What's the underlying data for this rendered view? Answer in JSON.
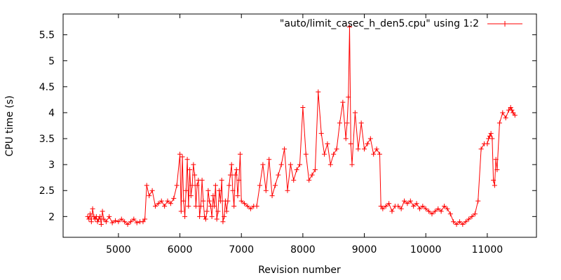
{
  "chart_data": {
    "type": "line",
    "title": "",
    "xlabel": "Revision number",
    "ylabel": "CPU time (s)",
    "xlim": [
      4100,
      11800
    ],
    "ylim": [
      1.6,
      5.9
    ],
    "xticks": [
      5000,
      6000,
      7000,
      8000,
      9000,
      10000,
      11000
    ],
    "yticks": [
      2,
      2.5,
      3,
      3.5,
      4,
      4.5,
      5,
      5.5
    ],
    "grid": false,
    "legend_position": "top-right",
    "colors": {
      "series": "#ff0000",
      "axis": "#000000",
      "background": "#ffffff"
    },
    "series": [
      {
        "name": "\"auto/limit_casec_h_den5.cpu\" using 1:2",
        "marker": "plus",
        "x": [
          4500,
          4520,
          4540,
          4560,
          4580,
          4600,
          4620,
          4640,
          4660,
          4680,
          4700,
          4720,
          4740,
          4760,
          4800,
          4850,
          4900,
          4950,
          5000,
          5050,
          5100,
          5150,
          5200,
          5250,
          5300,
          5350,
          5400,
          5430,
          5460,
          5500,
          5550,
          5600,
          5650,
          5700,
          5750,
          5800,
          5850,
          5900,
          5950,
          6000,
          6020,
          6040,
          6060,
          6080,
          6100,
          6120,
          6140,
          6160,
          6180,
          6200,
          6220,
          6240,
          6260,
          6280,
          6300,
          6320,
          6340,
          6360,
          6380,
          6400,
          6420,
          6440,
          6460,
          6480,
          6500,
          6520,
          6540,
          6560,
          6580,
          6600,
          6620,
          6640,
          6660,
          6680,
          6700,
          6720,
          6740,
          6760,
          6780,
          6800,
          6820,
          6840,
          6860,
          6880,
          6900,
          6920,
          6940,
          6960,
          6980,
          7000,
          7050,
          7100,
          7150,
          7200,
          7250,
          7300,
          7350,
          7400,
          7450,
          7500,
          7550,
          7600,
          7650,
          7700,
          7750,
          7800,
          7850,
          7900,
          7950,
          8000,
          8050,
          8100,
          8150,
          8200,
          8250,
          8300,
          8350,
          8400,
          8450,
          8500,
          8550,
          8600,
          8650,
          8700,
          8720,
          8740,
          8760,
          8780,
          8800,
          8850,
          8900,
          8950,
          9000,
          9050,
          9100,
          9150,
          9200,
          9250,
          9270,
          9300,
          9350,
          9400,
          9450,
          9500,
          9550,
          9600,
          9650,
          9700,
          9750,
          9800,
          9850,
          9900,
          9950,
          10000,
          10050,
          10100,
          10150,
          10200,
          10250,
          10300,
          10350,
          10400,
          10450,
          10500,
          10550,
          10600,
          10650,
          10700,
          10750,
          10800,
          10850,
          10900,
          10950,
          11000,
          11020,
          11040,
          11060,
          11080,
          11100,
          11120,
          11140,
          11160,
          11200,
          11250,
          11300,
          11350,
          11380,
          11400,
          11420,
          11450
        ],
        "y": [
          2.0,
          1.95,
          2.05,
          1.9,
          2.15,
          2.0,
          1.95,
          2.0,
          1.9,
          1.95,
          2.0,
          1.85,
          2.1,
          1.95,
          1.9,
          2.0,
          1.88,
          1.92,
          1.9,
          1.95,
          1.9,
          1.85,
          1.9,
          1.95,
          1.88,
          1.9,
          1.9,
          1.95,
          2.6,
          2.4,
          2.5,
          2.2,
          2.25,
          2.3,
          2.2,
          2.3,
          2.25,
          2.35,
          2.6,
          3.2,
          2.1,
          3.15,
          2.3,
          2.0,
          2.5,
          3.1,
          2.2,
          2.9,
          2.4,
          2.6,
          3.0,
          2.8,
          2.2,
          2.6,
          2.7,
          2.0,
          2.2,
          2.7,
          2.3,
          2.0,
          1.95,
          2.1,
          2.5,
          2.3,
          2.2,
          2.0,
          2.4,
          2.2,
          2.6,
          1.95,
          2.1,
          2.5,
          2.3,
          2.7,
          1.9,
          2.0,
          2.3,
          2.1,
          2.3,
          2.6,
          2.8,
          3.0,
          2.5,
          2.2,
          2.8,
          2.9,
          2.4,
          2.7,
          3.2,
          2.3,
          2.25,
          2.2,
          2.15,
          2.2,
          2.2,
          2.6,
          3.0,
          2.5,
          3.1,
          2.4,
          2.6,
          2.8,
          3.0,
          3.3,
          2.5,
          3.0,
          2.7,
          2.9,
          3.0,
          4.1,
          3.2,
          2.7,
          2.8,
          2.9,
          4.4,
          3.6,
          3.2,
          3.4,
          3.0,
          3.2,
          3.3,
          3.8,
          4.2,
          3.5,
          3.8,
          4.3,
          5.65,
          3.4,
          3.0,
          4.0,
          3.3,
          3.8,
          3.3,
          3.4,
          3.5,
          3.2,
          3.3,
          3.2,
          2.2,
          2.15,
          2.2,
          2.25,
          2.1,
          2.2,
          2.2,
          2.15,
          2.3,
          2.25,
          2.3,
          2.2,
          2.25,
          2.15,
          2.2,
          2.15,
          2.1,
          2.05,
          2.1,
          2.15,
          2.1,
          2.2,
          2.15,
          2.05,
          1.9,
          1.85,
          1.9,
          1.85,
          1.9,
          1.95,
          2.0,
          2.05,
          2.3,
          3.3,
          3.4,
          3.4,
          3.5,
          3.55,
          3.6,
          3.5,
          2.7,
          2.6,
          3.1,
          2.9,
          3.8,
          4.0,
          3.9,
          4.05,
          4.1,
          4.05,
          4.0,
          3.95
        ]
      }
    ]
  }
}
